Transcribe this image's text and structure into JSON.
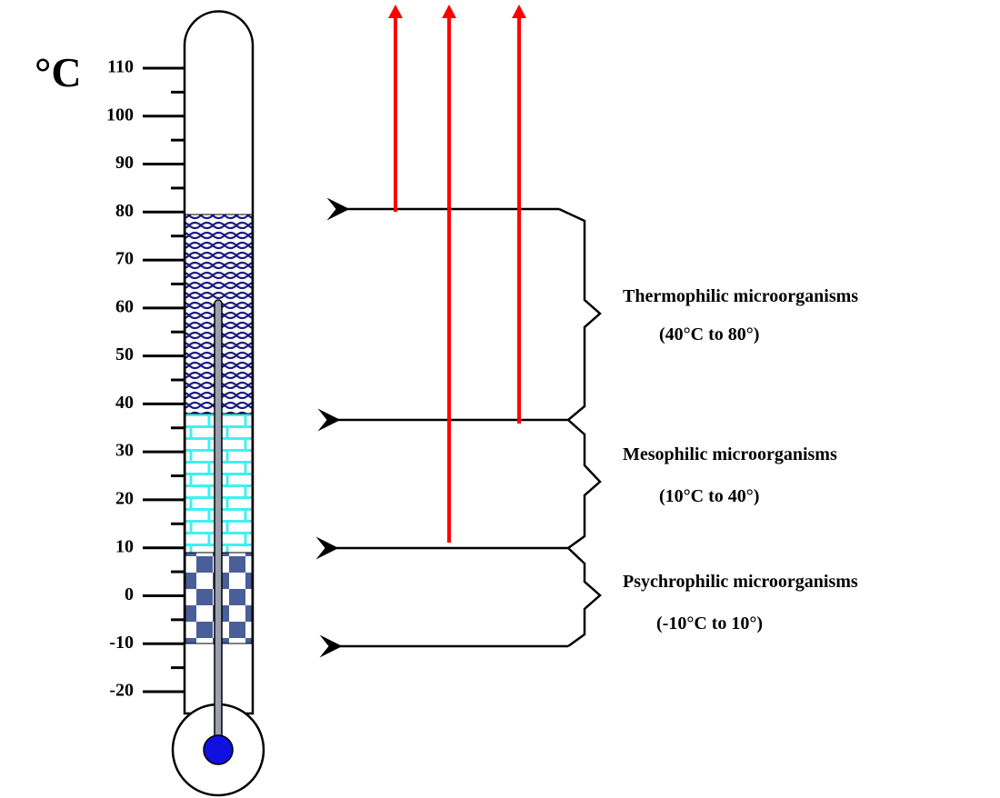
{
  "unit": "°C",
  "scale": {
    "ticks": [
      110,
      100,
      90,
      80,
      70,
      60,
      50,
      40,
      30,
      20,
      10,
      0,
      -10,
      -20
    ]
  },
  "groups": [
    {
      "name": "Thermophilic microorganisms",
      "range": "(40°C to 80°)"
    },
    {
      "name": "Mesophilic microorganisms",
      "range": "(10°C to 40°)"
    },
    {
      "name": "Psychrophilic microorganisms",
      "range": "(-10°C to 10°)"
    }
  ]
}
